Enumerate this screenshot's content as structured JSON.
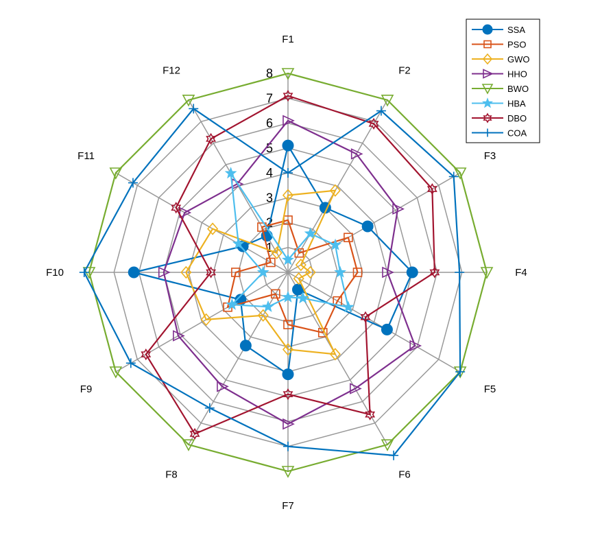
{
  "chart_data": {
    "type": "radar",
    "axes": [
      "F1",
      "F2",
      "F3",
      "F4",
      "F5",
      "F6",
      "F7",
      "F8",
      "F9",
      "F10",
      "F11",
      "F12"
    ],
    "ring_labels": [
      "1",
      "2",
      "3",
      "4",
      "5",
      "6",
      "7",
      "8"
    ],
    "rmax": 8,
    "grid": true,
    "legend_position": "top-right",
    "series": [
      {
        "name": "SSA",
        "color": "#0072BD",
        "marker": "filled-circle",
        "values": [
          5.1,
          3.0,
          3.7,
          5.0,
          4.6,
          0.8,
          4.1,
          3.4,
          2.2,
          6.2,
          2.1,
          1.7
        ]
      },
      {
        "name": "PSO",
        "color": "#D95319",
        "marker": "square",
        "values": [
          2.1,
          0.9,
          2.8,
          2.8,
          2.3,
          2.8,
          2.1,
          1.0,
          2.8,
          2.1,
          0.8,
          2.1
        ]
      },
      {
        "name": "GWO",
        "color": "#EDB120",
        "marker": "diamond",
        "values": [
          3.1,
          3.8,
          0.6,
          0.9,
          0.5,
          3.8,
          3.1,
          2.0,
          3.8,
          4.1,
          3.5,
          0.9
        ]
      },
      {
        "name": "HHO",
        "color": "#7E2F8E",
        "marker": "triangle-right",
        "values": [
          6.1,
          5.5,
          5.1,
          4.0,
          5.9,
          5.4,
          6.1,
          5.3,
          5.1,
          5.0,
          4.8,
          4.1
        ]
      },
      {
        "name": "BWO",
        "color": "#77AC30",
        "marker": "triangle-down",
        "values": [
          8.0,
          8.0,
          8.0,
          8.0,
          8.0,
          8.0,
          8.0,
          8.0,
          8.0,
          8.0,
          8.0,
          8.0
        ]
      },
      {
        "name": "HBA",
        "color": "#4DBEEE",
        "marker": "star",
        "values": [
          0.5,
          1.8,
          2.2,
          2.1,
          2.8,
          1.2,
          1.0,
          1.6,
          2.6,
          1.0,
          2.3,
          4.6
        ]
      },
      {
        "name": "DBO",
        "color": "#A2142F",
        "marker": "hexagram",
        "values": [
          7.1,
          6.9,
          6.7,
          5.9,
          3.6,
          6.6,
          4.9,
          7.5,
          6.6,
          3.1,
          5.2,
          6.2
        ]
      },
      {
        "name": "COA",
        "color": "#0072BD",
        "marker": "plus",
        "values": [
          4.0,
          7.5,
          7.7,
          6.9,
          8.0,
          8.5,
          7.0,
          6.3,
          7.3,
          8.2,
          7.2,
          7.6
        ]
      }
    ]
  }
}
